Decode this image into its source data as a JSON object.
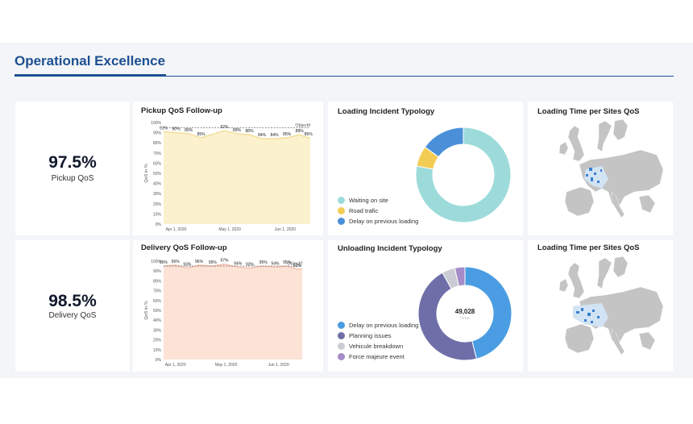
{
  "page": {
    "title": "Operational Excellence"
  },
  "kpis": [
    {
      "value": "97.5%",
      "label": "Pickup QoS"
    },
    {
      "value": "98.5%",
      "label": "Delivery QoS"
    }
  ],
  "pickup_chart": {
    "title": "Pickup QoS Follow-up",
    "ylabel": "QoS in %",
    "objective_label": "Objectif",
    "yticks": [
      "100%",
      "90%",
      "80%",
      "70%",
      "60%",
      "50%",
      "40%",
      "30%",
      "20%",
      "10%",
      "0%"
    ],
    "xticks": [
      "Apr 1, 2020",
      "May 1, 2020",
      "Jun 1, 2020"
    ],
    "labels": [
      "91%",
      "90%",
      "89%",
      "85%",
      "92%",
      "89%",
      "88%",
      "84%",
      "84%",
      "85%",
      "88%",
      "85%"
    ]
  },
  "delivery_chart": {
    "title": "Delivery QoS Follow-up",
    "ylabel": "QoS in %",
    "objective_label": "Objectif",
    "yticks": [
      "100%",
      "90%",
      "80%",
      "70%",
      "60%",
      "50%",
      "40%",
      "30%",
      "20%",
      "10%",
      "0%"
    ],
    "xticks": [
      "Apr 1, 2020",
      "May 1, 2020",
      "Jun 1, 2020"
    ],
    "labels": [
      "95%",
      "96%",
      "93%",
      "96%",
      "95%",
      "97%",
      "94%",
      "93%",
      "95%",
      "94%",
      "95%",
      "92%"
    ]
  },
  "loading_incident": {
    "title": "Loading Incident Typology",
    "legend": [
      "Waiting on site",
      "Road trafic",
      "Delay on previous loading"
    ],
    "colors": [
      "#9ddbdb",
      "#f3cc53",
      "#4a90d9"
    ]
  },
  "unloading_incident": {
    "title": "Unloading Incident Typology",
    "center_value": "49,028",
    "center_sub": "TOTAL",
    "legend": [
      "Delay on previous loading",
      "Planning issues",
      "Vehicule breakdown",
      "Force majeure event"
    ],
    "colors": [
      "#4a9de2",
      "#6e6fa8",
      "#c9cdd3",
      "#a68bc9"
    ]
  },
  "maps": [
    {
      "title": "Loading Time per Sites QoS"
    },
    {
      "title": "Loading Time per Sites QoS"
    }
  ],
  "chart_data": [
    {
      "type": "area",
      "title": "Pickup QoS Follow-up",
      "ylabel": "QoS in %",
      "ylim": [
        0,
        100
      ],
      "x": [
        "2020-03-25",
        "2020-04-01",
        "2020-04-08",
        "2020-04-15",
        "2020-04-28",
        "2020-05-05",
        "2020-05-12",
        "2020-05-19",
        "2020-05-26",
        "2020-06-02",
        "2020-06-09",
        "2020-06-14"
      ],
      "series": [
        {
          "values": [
            91,
            90,
            89,
            85,
            92,
            89,
            88,
            84,
            84,
            85,
            88,
            85
          ]
        }
      ],
      "objective": 95
    },
    {
      "type": "area",
      "title": "Delivery QoS Follow-up",
      "ylabel": "QoS in %",
      "ylim": [
        0,
        100
      ],
      "x": [
        "2020-03-25",
        "2020-04-01",
        "2020-04-08",
        "2020-04-15",
        "2020-04-23",
        "2020-04-30",
        "2020-05-08",
        "2020-05-15",
        "2020-05-23",
        "2020-05-30",
        "2020-06-06",
        "2020-06-12"
      ],
      "series": [
        {
          "values": [
            95,
            96,
            93,
            96,
            95,
            97,
            94,
            93,
            95,
            94,
            95,
            92
          ]
        }
      ],
      "objective": 95
    },
    {
      "type": "pie",
      "title": "Loading Incident Typology",
      "categories": [
        "Waiting on site",
        "Road trafic",
        "Delay on previous loading"
      ],
      "values": [
        78,
        7,
        15
      ]
    },
    {
      "type": "pie",
      "title": "Unloading Incident Typology",
      "categories": [
        "Delay on previous loading",
        "Planning issues",
        "Vehicule breakdown",
        "Force majeure event"
      ],
      "values": [
        46,
        46,
        4.5,
        3.5
      ],
      "total": "49,028"
    }
  ]
}
